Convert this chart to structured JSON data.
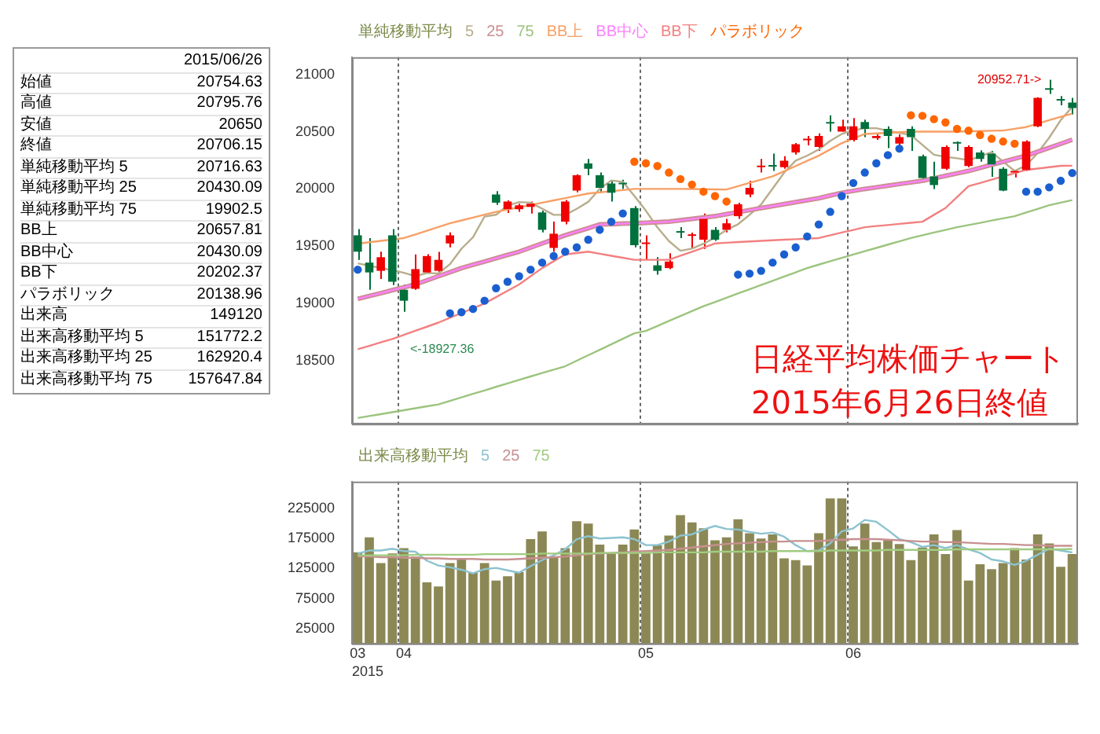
{
  "chart_data": [
    {
      "type": "candlestick",
      "title": "日経平均株価チャート",
      "subtitle": "2015年6月26日終値",
      "legend": "top left",
      "legend_title": "単純移動平均",
      "tick_labels": "y",
      "grid": "x",
      "categories": [
        "03",
        null,
        null,
        null,
        "04",
        null,
        null,
        null,
        null,
        null,
        null,
        null,
        null,
        null,
        null,
        null,
        null,
        null,
        null,
        null,
        null,
        null,
        null,
        null,
        null,
        "05",
        null,
        null,
        null,
        null,
        null,
        null,
        null,
        null,
        null,
        null,
        null,
        null,
        null,
        null,
        null,
        null,
        null,
        "06",
        null,
        null,
        null,
        null,
        null,
        null,
        null,
        null,
        null,
        null,
        null,
        null,
        null,
        null,
        null,
        null,
        null,
        null,
        null
      ],
      "ylim": [
        17950,
        21150
      ],
      "yticks": [
        18500,
        19000,
        19500,
        20000,
        20500,
        21000
      ],
      "annotations": [
        "2015/06/26",
        "始値 20754.63",
        "高値 20795.76",
        "安値 20650",
        "終値 20706.15",
        "単純移動平均 5 20716.63",
        "単純移動平均 25 20430.09",
        "単純移動平均 75 19902.5",
        "BB上 20657.81",
        "BB中心 20430.09",
        "BB下 20202.37",
        "パラボリック 20138.96",
        "出来高 149120",
        "出来高移動平均 5 151772.2",
        "出来高移動平均 25 162920.4",
        "出来高移動平均 75 157647.84",
        {
          "text": "<-18927.36",
          "y": 18927.36
        },
        {
          "text": "20952.71->"
        }
      ],
      "series": [
        {
          "type": "candlestick",
          "ohlc": [
            [
              19595,
              19650,
              19381,
              19452
            ],
            [
              19357,
              19571,
              19119,
              19271
            ],
            [
              19285,
              19452,
              19214,
              19404
            ],
            [
              19595,
              19650,
              19160,
              19190
            ],
            [
              19119,
              19166,
              18927.36,
              19024
            ],
            [
              19128,
              19428,
              19119,
              19300
            ],
            [
              19271,
              19430,
              19262,
              19414
            ],
            [
              19285,
              19450,
              19233,
              19381
            ],
            [
              19524,
              19620,
              19490,
              19595
            ],
            null,
            null,
            null,
            [
              19952,
              19980,
              19860,
              19880
            ],
            [
              19823,
              19900,
              19790,
              19890
            ],
            [
              19823,
              19870,
              19800,
              19857
            ],
            [
              19843,
              19890,
              19785,
              19871
            ],
            [
              19795,
              19810,
              19620,
              19643
            ],
            [
              19485,
              19714,
              19452,
              19609
            ],
            [
              19714,
              19904,
              19690,
              19890
            ],
            [
              19985,
              20128,
              19970,
              20119
            ],
            [
              20223,
              20262,
              20119,
              20176
            ],
            [
              20119,
              20143,
              19966,
              20009
            ],
            [
              20047,
              20071,
              19890,
              19966
            ],
            [
              20047,
              20080,
              20000,
              20040
            ],
            [
              19833,
              19850,
              19490,
              19509
            ],
            [
              19519,
              19595,
              19381,
              19524
            ],
            [
              19333,
              19404,
              19252,
              19285
            ],
            [
              19309,
              19438,
              19300,
              19366
            ],
            [
              19623,
              19667,
              19571,
              19618
            ],
            [
              19590,
              19618,
              19476,
              19600
            ],
            [
              19557,
              19785,
              19476,
              19738
            ],
            [
              19643,
              19666,
              19547,
              19557
            ],
            [
              19643,
              19738,
              19620,
              19700
            ],
            [
              19762,
              19880,
              19738,
              19866
            ],
            [
              19952,
              20071,
              19928,
              20009
            ],
            [
              20190,
              20262,
              20143,
              20195
            ],
            [
              20200,
              20309,
              20157,
              20195
            ],
            [
              20190,
              20285,
              20176,
              20247
            ],
            [
              20319,
              20400,
              20300,
              20390
            ],
            [
              20424,
              20462,
              20381,
              20428
            ],
            [
              20366,
              20485,
              20333,
              20462
            ],
            [
              20576,
              20643,
              20500,
              20571
            ],
            [
              20500,
              20605,
              20500,
              20547
            ],
            [
              20428,
              20619,
              20414,
              20547
            ],
            [
              20585,
              20605,
              20452,
              20524
            ],
            [
              20443,
              20476,
              20428,
              20462
            ],
            [
              20524,
              20547,
              20357,
              20462
            ],
            [
              20395,
              20476,
              20366,
              20452
            ],
            [
              20524,
              20547,
              20333,
              20452
            ],
            [
              20286,
              20300,
              20080,
              20095
            ],
            [
              20109,
              20238,
              19999,
              20033
            ],
            [
              20176,
              20381,
              20166,
              20366
            ],
            [
              20405,
              20414,
              20333,
              20395
            ],
            [
              20200,
              20381,
              20190,
              20366
            ],
            [
              20319,
              20338,
              20238,
              20262
            ],
            [
              20309,
              20333,
              20105,
              20214
            ],
            [
              20176,
              20190,
              19980,
              19985
            ],
            [
              20143,
              20166,
              20100,
              20157
            ],
            [
              20166,
              20424,
              20157,
              20414
            ],
            [
              20547,
              20800,
              20540,
              20795
            ],
            [
              20876,
              20952.71,
              20830,
              20866
            ],
            [
              20776,
              20810,
              20730,
              20771
            ],
            [
              20754.63,
              20795.76,
              20650,
              20706.15
            ]
          ],
          "colors": [
            "#00703c",
            "#00703c",
            "#f00000",
            "#00703c",
            "#00703c",
            "#f00000",
            "#f00000",
            "#f00000",
            "#f00000",
            null,
            null,
            null,
            "#00703c",
            "#f00000",
            "#f00000",
            "#f00000",
            "#00703c",
            "#f00000",
            "#f00000",
            "#f00000",
            "#00703c",
            "#00703c",
            "#00703c",
            "#00703c",
            "#00703c",
            "#f00000",
            "#00703c",
            "#f00000",
            "#00703c",
            "#f00000",
            "#f00000",
            "#00703c",
            "#f00000",
            "#f00000",
            "#f00000",
            "#f00000",
            "#00703c",
            "#f00000",
            "#f00000",
            "#f00000",
            "#f00000",
            "#00703c",
            "#f00000",
            "#f00000",
            "#00703c",
            "#f00000",
            "#00703c",
            "#f00000",
            "#00703c",
            "#00703c",
            "#00703c",
            "#f00000",
            "#00703c",
            "#f00000",
            "#00703c",
            "#00703c",
            "#00703c",
            "#f00000",
            "#f00000",
            "#f00000",
            "#00703c",
            "#00703c",
            "#00703c"
          ]
        },
        {
          "type": "line",
          "name": "5",
          "color": "#b8ad8c",
          "values": [
            19350,
            19330,
            19310,
            19290,
            19268,
            19238,
            19266,
            19262,
            19343,
            19478,
            19578,
            19759,
            19775,
            19854,
            19885,
            19880,
            19828,
            19774,
            19774,
            19826,
            19887,
            20001,
            20074,
            20062,
            19940,
            19810,
            19665,
            19545,
            19460,
            19479,
            19521,
            19576,
            19643,
            19692,
            19774,
            19865,
            20003,
            20142,
            20247,
            20291,
            20344,
            20420,
            20480,
            20511,
            20530,
            20530,
            20508,
            20489,
            20470,
            20385,
            20299,
            20280,
            20268,
            20251,
            20284,
            20321,
            20239,
            20157,
            20206,
            20313,
            20447,
            20601,
            20716.63
          ]
        },
        {
          "type": "line",
          "name": "25",
          "color": "#c98f8f",
          "values": [
            19040,
            19065,
            19090,
            19116,
            19141,
            19166,
            19202,
            19238,
            19273,
            19309,
            19338,
            19366,
            19395,
            19424,
            19452,
            19488,
            19524,
            19559,
            19595,
            19627,
            19658,
            19690,
            19693,
            19697,
            19700,
            19705,
            19709,
            19714,
            19726,
            19738,
            19750,
            19762,
            19780,
            19798,
            19815,
            19833,
            19850,
            19867,
            19885,
            19902,
            19919,
            19943,
            19966,
            19983,
            20000,
            20014,
            20028,
            20043,
            20057,
            20071,
            20093,
            20114,
            20136,
            20157,
            20184,
            20211,
            20237,
            20264,
            20290,
            20325,
            20359,
            20394,
            20430.09
          ]
        },
        {
          "type": "line",
          "name": "75",
          "color": "#9cc47e",
          "values": [
            18000,
            18017,
            18034,
            18051,
            18068,
            18085,
            18102,
            18119,
            18150,
            18180,
            18211,
            18241,
            18272,
            18302,
            18333,
            18363,
            18393,
            18422,
            18452,
            18500,
            18548,
            18596,
            18644,
            18692,
            18740,
            18760,
            18803,
            18847,
            18890,
            18933,
            18976,
            19013,
            19050,
            19087,
            19124,
            19161,
            19198,
            19235,
            19272,
            19309,
            19339,
            19369,
            19398,
            19428,
            19457,
            19485,
            19514,
            19542,
            19571,
            19595,
            19619,
            19642,
            19666,
            19685,
            19704,
            19724,
            19743,
            19762,
            19794,
            19826,
            19858,
            19880,
            19902.5
          ]
        },
        {
          "type": "line",
          "name": "BB上",
          "color": "#f7a066",
          "values": [
            19523,
            19535,
            19547,
            19559,
            19571,
            19603,
            19635,
            19668,
            19700,
            19725,
            19750,
            19775,
            19800,
            19820,
            19840,
            19860,
            19880,
            19900,
            19920,
            19940,
            19960,
            19970,
            19980,
            19990,
            20000,
            20000,
            20000,
            20000,
            20000,
            19999,
            19998,
            19996,
            19995,
            20024,
            20053,
            20081,
            20110,
            20155,
            20200,
            20245,
            20290,
            20345,
            20400,
            20440,
            20480,
            20485,
            20490,
            20495,
            20500,
            20500,
            20500,
            20500,
            20500,
            20503,
            20505,
            20508,
            20510,
            20525,
            20540,
            20570,
            20600,
            20630,
            20657.81
          ]
        },
        {
          "type": "line",
          "name": "BB中心",
          "color": "#ff80ff",
          "values": [
            19040,
            19065,
            19090,
            19116,
            19141,
            19166,
            19202,
            19238,
            19273,
            19309,
            19338,
            19366,
            19395,
            19424,
            19452,
            19488,
            19524,
            19559,
            19595,
            19627,
            19658,
            19690,
            19693,
            19697,
            19700,
            19705,
            19709,
            19714,
            19726,
            19738,
            19750,
            19762,
            19780,
            19798,
            19815,
            19833,
            19850,
            19867,
            19885,
            19902,
            19919,
            19943,
            19966,
            19983,
            20000,
            20014,
            20028,
            20043,
            20057,
            20071,
            20093,
            20114,
            20136,
            20157,
            20184,
            20211,
            20237,
            20264,
            20290,
            20325,
            20359,
            20394,
            20430.09
          ]
        },
        {
          "type": "line",
          "name": "BB下",
          "color": "#f28080",
          "values": [
            18600,
            18630,
            18660,
            18690,
            18726,
            18762,
            18797,
            18833,
            18875,
            18917,
            18958,
            19000,
            19055,
            19111,
            19166,
            19238,
            19309,
            19369,
            19428,
            19440,
            19452,
            19434,
            19416,
            19399,
            19381,
            19381,
            19381,
            19381,
            19417,
            19452,
            19488,
            19524,
            19530,
            19536,
            19541,
            19547,
            19552,
            19557,
            19561,
            19566,
            19571,
            19595,
            19619,
            19642,
            19666,
            19676,
            19685,
            19695,
            19704,
            19714,
            19774,
            19833,
            19929,
            20024,
            20052,
            20081,
            20109,
            20138,
            20166,
            20178,
            20190,
            20202,
            20202.37
          ]
        },
        {
          "type": "scatter",
          "name": "パラボリック",
          "color": "#ff6600",
          "marker": "circle",
          "values": [
            19295,
            null,
            null,
            null,
            null,
            null,
            null,
            null,
            18914,
            18924,
            18952,
            19024,
            19133,
            19190,
            19238,
            19295,
            19357,
            19414,
            19452,
            19490,
            19557,
            19643,
            19714,
            19786,
            20238,
            20224,
            20200,
            20143,
            20086,
            20038,
            19976,
            19938,
            19890,
            19252,
            19261,
            19285,
            19357,
            19428,
            19490,
            19585,
            19690,
            19800,
            19938,
            20052,
            20143,
            20224,
            20295,
            20352,
            20643,
            20638,
            20609,
            20581,
            20524,
            20509,
            20471,
            20438,
            20414,
            20395,
            19976,
            19976,
            20014,
            20071,
            20138.96
          ],
          "colors": [
            "#1a5fd0",
            null,
            null,
            null,
            null,
            null,
            null,
            null,
            "#1a5fd0",
            "#1a5fd0",
            "#1a5fd0",
            "#1a5fd0",
            "#1a5fd0",
            "#1a5fd0",
            "#1a5fd0",
            "#1a5fd0",
            "#1a5fd0",
            "#1a5fd0",
            "#1a5fd0",
            "#1a5fd0",
            "#1a5fd0",
            "#1a5fd0",
            "#1a5fd0",
            "#1a5fd0",
            "#ff6600",
            "#ff6600",
            "#ff6600",
            "#ff6600",
            "#ff6600",
            "#ff6600",
            "#ff6600",
            "#ff6600",
            "#ff6600",
            "#1a5fd0",
            "#1a5fd0",
            "#1a5fd0",
            "#1a5fd0",
            "#1a5fd0",
            "#1a5fd0",
            "#1a5fd0",
            "#1a5fd0",
            "#1a5fd0",
            "#1a5fd0",
            "#1a5fd0",
            "#1a5fd0",
            "#1a5fd0",
            "#1a5fd0",
            "#1a5fd0",
            "#ff6600",
            "#ff6600",
            "#ff6600",
            "#ff6600",
            "#ff6600",
            "#ff6600",
            "#ff6600",
            "#ff6600",
            "#ff6600",
            "#ff6600",
            "#1a5fd0",
            "#1a5fd0",
            "#1a5fd0",
            "#1a5fd0",
            "#1a5fd0"
          ]
        }
      ]
    },
    {
      "type": "bar",
      "legend": "top left",
      "legend_title": "出来高移動平均",
      "grid": "x",
      "xlabel": "2015",
      "categories": [
        "03",
        null,
        null,
        null,
        "04",
        null,
        null,
        null,
        null,
        null,
        null,
        null,
        null,
        null,
        null,
        null,
        null,
        null,
        null,
        null,
        null,
        null,
        null,
        null,
        null,
        "05",
        null,
        null,
        null,
        null,
        null,
        null,
        null,
        null,
        null,
        null,
        null,
        null,
        null,
        null,
        null,
        null,
        null,
        "06",
        null,
        null,
        null,
        null,
        null,
        null,
        null,
        null,
        null,
        null,
        null,
        null,
        null,
        null,
        null,
        null,
        null,
        null,
        null
      ],
      "ylim": [
        0,
        270000
      ],
      "yticks": [
        25000,
        75000,
        125000,
        175000,
        225000
      ],
      "series": [
        {
          "type": "bar",
          "color": "#8c8855",
          "values": [
            152000,
            177000,
            134000,
            150000,
            159000,
            145000,
            102000,
            95000,
            134000,
            140000,
            118000,
            134000,
            105000,
            112000,
            119000,
            174000,
            187000,
            145000,
            159000,
            204000,
            200000,
            165000,
            150000,
            165000,
            190000,
            152000,
            164000,
            180000,
            214000,
            202000,
            192000,
            172000,
            177000,
            207000,
            184000,
            175000,
            182000,
            142000,
            139000,
            130000,
            184000,
            242000,
            242000,
            162000,
            200000,
            169000,
            172000,
            166000,
            139000,
            160000,
            182000,
            149000,
            189000,
            105000,
            132000,
            124000,
            134000,
            159000,
            140000,
            182000,
            167000,
            128000,
            149120
          ]
        },
        {
          "type": "line",
          "name": "5",
          "color": "#8cc3cf",
          "values": [
            150000,
            155000,
            155000,
            158000,
            154000,
            153000,
            138000,
            130000,
            127000,
            123000,
            117000,
            124000,
            126000,
            122000,
            118000,
            129000,
            139000,
            147000,
            157000,
            174000,
            179000,
            175000,
            176000,
            177000,
            174000,
            164000,
            164000,
            170000,
            180000,
            182000,
            190000,
            196000,
            191000,
            190000,
            186000,
            183000,
            185000,
            178000,
            164000,
            154000,
            155000,
            167000,
            187000,
            192000,
            206000,
            203000,
            189000,
            174000,
            169000,
            161000,
            164000,
            159000,
            164000,
            157000,
            151000,
            140000,
            137000,
            131000,
            138000,
            148000,
            158000,
            155000,
            151772.2
          ]
        },
        {
          "type": "line",
          "name": "25",
          "color": "#c89090",
          "values": [
            145000,
            145000,
            144000,
            144000,
            143000,
            143000,
            142000,
            142000,
            141000,
            141000,
            141000,
            140000,
            140000,
            140000,
            141000,
            142000,
            143000,
            144000,
            145000,
            147000,
            149000,
            150000,
            151000,
            152000,
            153000,
            154000,
            155000,
            156000,
            158000,
            160000,
            162000,
            164000,
            166000,
            167000,
            168000,
            169000,
            170000,
            170000,
            171000,
            171000,
            171000,
            172000,
            173000,
            174000,
            174000,
            174000,
            173000,
            172000,
            171000,
            170000,
            170000,
            169000,
            169000,
            168000,
            167000,
            166000,
            166000,
            165000,
            164000,
            164000,
            163000,
            163000,
            162920.4
          ]
        },
        {
          "type": "line",
          "name": "75",
          "color": "#a0cc80",
          "values": [
            147000,
            147000,
            147000,
            147000,
            147000,
            148000,
            148000,
            148000,
            148000,
            148000,
            148000,
            149000,
            149000,
            149000,
            149000,
            149000,
            150000,
            150000,
            150000,
            150000,
            150000,
            151000,
            151000,
            151000,
            151000,
            151000,
            152000,
            152000,
            152000,
            152000,
            152000,
            153000,
            153000,
            153000,
            153000,
            153000,
            154000,
            154000,
            154000,
            154000,
            154000,
            155000,
            155000,
            155000,
            155000,
            155000,
            156000,
            156000,
            156000,
            156000,
            156000,
            156000,
            157000,
            157000,
            157000,
            157000,
            157000,
            157000,
            157000,
            157000,
            157000,
            157000,
            157647.84
          ]
        }
      ]
    }
  ]
}
